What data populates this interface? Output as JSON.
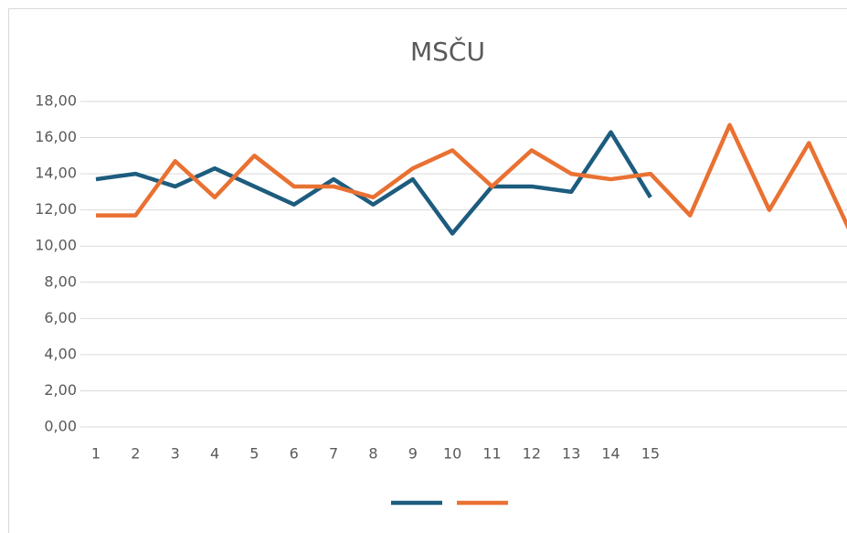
{
  "chart_data": {
    "type": "line",
    "title": "MSČU",
    "categories": [
      "1",
      "2",
      "3",
      "4",
      "5",
      "6",
      "7",
      "8",
      "9",
      "10",
      "11",
      "12",
      "13",
      "14",
      "15",
      null,
      null,
      null,
      null,
      null
    ],
    "series": [
      {
        "color": "#1d5c7e",
        "values": [
          13.7,
          14.0,
          13.3,
          14.3,
          13.3,
          12.3,
          13.7,
          12.3,
          13.7,
          10.7,
          13.3,
          13.3,
          13.0,
          16.3,
          12.7,
          null,
          null,
          null,
          null,
          null
        ]
      },
      {
        "color": "#e97132",
        "values": [
          11.7,
          11.7,
          14.7,
          12.7,
          15.0,
          13.3,
          13.3,
          12.7,
          14.3,
          15.3,
          13.3,
          15.3,
          14.0,
          13.7,
          14.0,
          11.7,
          16.7,
          12.0,
          15.7,
          11.0
        ]
      }
    ],
    "ylim": [
      0,
      18
    ],
    "yticks": [
      {
        "value": 0,
        "label": "0,00"
      },
      {
        "value": 2,
        "label": "2,00"
      },
      {
        "value": 4,
        "label": "4,00"
      },
      {
        "value": 6,
        "label": "6,00"
      },
      {
        "value": 8,
        "label": "8,00"
      },
      {
        "value": 10,
        "label": "10,00"
      },
      {
        "value": 12,
        "label": "12,00"
      },
      {
        "value": 14,
        "label": "14,00"
      },
      {
        "value": 16,
        "label": "16,00"
      },
      {
        "value": 18,
        "label": "18,00"
      }
    ],
    "grid": true,
    "legend": "bottom"
  }
}
